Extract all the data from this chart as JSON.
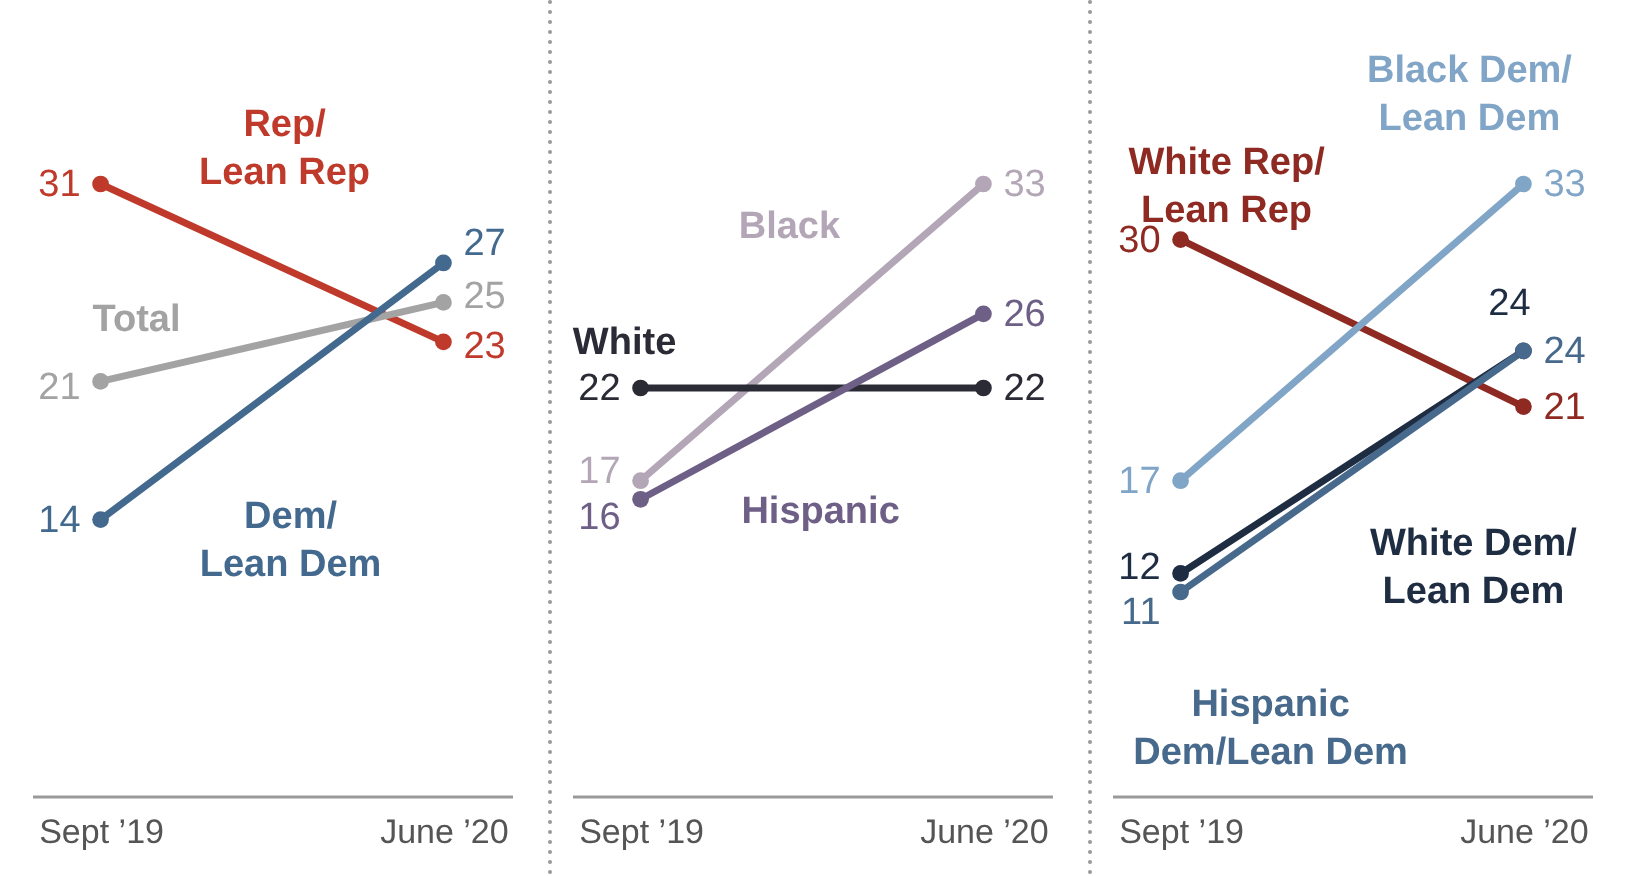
{
  "chart_data": [
    {
      "type": "line",
      "categories": [
        "Sept ’19",
        "June ’20"
      ],
      "tick_labels": "x",
      "grid": false,
      "marker": "circle",
      "line_style": "solid",
      "data_labels": true,
      "series": [
        {
          "name": "Rep/\nLean Rep",
          "color": "#bf3a2b",
          "values": [
            31,
            23
          ]
        },
        {
          "name": "Total",
          "color": "#a3a3a3",
          "values": [
            21,
            25
          ]
        },
        {
          "name": "Dem/\nLean Dem",
          "color": "#436a8e",
          "values": [
            14,
            27
          ]
        }
      ]
    },
    {
      "type": "line",
      "categories": [
        "Sept ’19",
        "June ’20"
      ],
      "tick_labels": "x",
      "grid": false,
      "marker": "circle",
      "line_style": "solid",
      "data_labels": true,
      "series": [
        {
          "name": "Black",
          "color": "#b3a6b6",
          "values": [
            17,
            33
          ]
        },
        {
          "name": "White",
          "color": "#2b2b36",
          "values": [
            22,
            22
          ]
        },
        {
          "name": "Hispanic",
          "color": "#6e5f86",
          "values": [
            16,
            26
          ]
        }
      ]
    },
    {
      "type": "line",
      "categories": [
        "Sept ’19",
        "June ’20"
      ],
      "tick_labels": "x",
      "grid": false,
      "marker": "circle",
      "line_style": "solid",
      "data_labels": true,
      "series": [
        {
          "name": "White Rep/\nLean Rep",
          "color": "#8e2a22",
          "values": [
            30,
            21
          ]
        },
        {
          "name": "Black Dem/\nLean Dem",
          "color": "#80a5c6",
          "values": [
            17,
            33
          ]
        },
        {
          "name": "White Dem/\nLean Dem",
          "color": "#1f2d43",
          "values": [
            12,
            24
          ]
        },
        {
          "name": "Hispanic\nDem/Lean Dem",
          "color": "#47698c",
          "values": [
            11,
            24
          ]
        }
      ]
    }
  ]
}
